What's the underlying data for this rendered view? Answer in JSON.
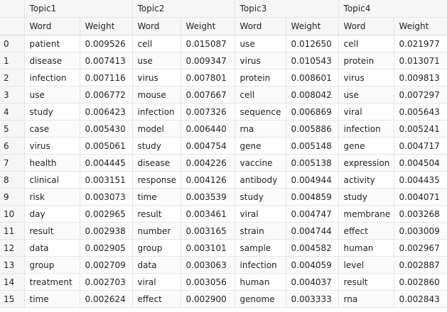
{
  "table": {
    "topics": [
      "Topic1",
      "Topic2",
      "Topic3",
      "Topic4"
    ],
    "subheaders": [
      "Word",
      "Weight",
      "Word",
      "Weight",
      "Word",
      "Weight",
      "Word",
      "Weight"
    ],
    "rows": [
      [
        "0",
        "patient",
        "0.009526",
        "cell",
        "0.015087",
        "use",
        "0.012650",
        "cell",
        "0.021977"
      ],
      [
        "1",
        "disease",
        "0.007413",
        "use",
        "0.009347",
        "virus",
        "0.010543",
        "protein",
        "0.013071"
      ],
      [
        "2",
        "infection",
        "0.007116",
        "virus",
        "0.007801",
        "protein",
        "0.008601",
        "virus",
        "0.009813"
      ],
      [
        "3",
        "use",
        "0.006772",
        "mouse",
        "0.007667",
        "cell",
        "0.008042",
        "use",
        "0.007297"
      ],
      [
        "4",
        "study",
        "0.006423",
        "infection",
        "0.007326",
        "sequence",
        "0.006869",
        "viral",
        "0.005643"
      ],
      [
        "5",
        "case",
        "0.005430",
        "model",
        "0.006440",
        "rna",
        "0.005886",
        "infection",
        "0.005241"
      ],
      [
        "6",
        "virus",
        "0.005061",
        "study",
        "0.004754",
        "gene",
        "0.005148",
        "gene",
        "0.004717"
      ],
      [
        "7",
        "health",
        "0.004445",
        "disease",
        "0.004226",
        "vaccine",
        "0.005138",
        "expression",
        "0.004504"
      ],
      [
        "8",
        "clinical",
        "0.003151",
        "response",
        "0.004126",
        "antibody",
        "0.004944",
        "activity",
        "0.004435"
      ],
      [
        "9",
        "risk",
        "0.003073",
        "time",
        "0.003539",
        "study",
        "0.004859",
        "study",
        "0.004071"
      ],
      [
        "10",
        "day",
        "0.002965",
        "result",
        "0.003461",
        "viral",
        "0.004747",
        "membrane",
        "0.003268"
      ],
      [
        "11",
        "result",
        "0.002938",
        "number",
        "0.003165",
        "strain",
        "0.004744",
        "effect",
        "0.003009"
      ],
      [
        "12",
        "data",
        "0.002905",
        "group",
        "0.003101",
        "sample",
        "0.004582",
        "human",
        "0.002967"
      ],
      [
        "13",
        "group",
        "0.002709",
        "data",
        "0.003063",
        "infection",
        "0.004059",
        "level",
        "0.002887"
      ],
      [
        "14",
        "treatment",
        "0.002703",
        "viral",
        "0.003056",
        "human",
        "0.004037",
        "result",
        "0.002860"
      ],
      [
        "15",
        "time",
        "0.002624",
        "effect",
        "0.002900",
        "genome",
        "0.003333",
        "rna",
        "0.002843"
      ]
    ]
  }
}
